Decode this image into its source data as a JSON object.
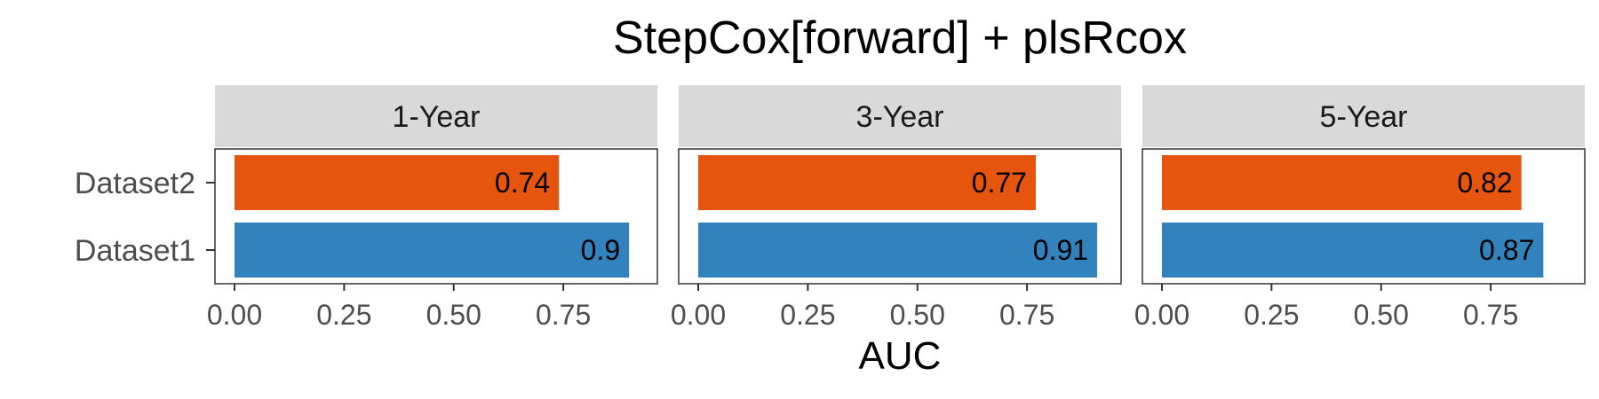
{
  "chart_data": {
    "type": "bar",
    "orientation": "horizontal",
    "title": "StepCox[forward] + plsRcox",
    "xlabel": "AUC",
    "ylabel": "",
    "xlim": [
      0,
      0.92
    ],
    "x_ticks": [
      "0.00",
      "0.25",
      "0.50",
      "0.75"
    ],
    "x_tick_values": [
      0,
      0.25,
      0.5,
      0.75
    ],
    "categories": [
      "Dataset2",
      "Dataset1"
    ],
    "colors": {
      "Dataset2": "#E6550D",
      "Dataset1": "#3182BD"
    },
    "strip_color": "#D9D9D9",
    "grid": false,
    "legend": "none",
    "facets": [
      {
        "label": "1-Year",
        "values": [
          0.74,
          0.9
        ],
        "value_labels": [
          "0.74",
          "0.9"
        ]
      },
      {
        "label": "3-Year",
        "values": [
          0.77,
          0.91
        ],
        "value_labels": [
          "0.77",
          "0.91"
        ]
      },
      {
        "label": "5-Year",
        "values": [
          0.82,
          0.87
        ],
        "value_labels": [
          "0.82",
          "0.87"
        ]
      }
    ]
  }
}
